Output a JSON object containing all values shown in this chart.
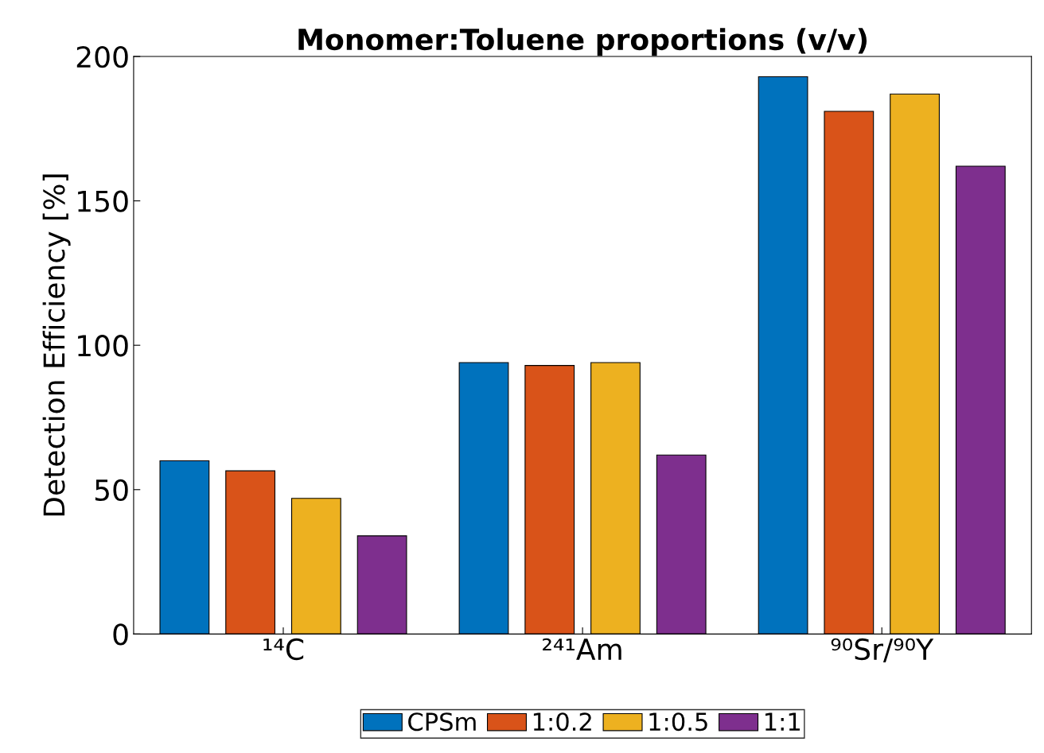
{
  "chart_data": {
    "type": "bar",
    "title": "Monomer:Toluene proportions (v/v)",
    "ylabel": "Detection Efficiency [%]",
    "categories": [
      "¹⁴C",
      "²⁴¹Am",
      "⁹⁰Sr/⁹⁰Y"
    ],
    "series": [
      {
        "name": "CPSm",
        "color": "#0072bd",
        "values": [
          60,
          94,
          193
        ]
      },
      {
        "name": "1:0.2",
        "color": "#d95319",
        "values": [
          56.5,
          93,
          181
        ]
      },
      {
        "name": "1:0.5",
        "color": "#edb120",
        "values": [
          47,
          94,
          187
        ]
      },
      {
        "name": "1:1",
        "color": "#7e2f8e",
        "values": [
          34,
          62,
          162
        ]
      }
    ],
    "ylim": [
      0,
      200
    ],
    "yticks": [
      0,
      50,
      100,
      150,
      200
    ],
    "grid": false,
    "legend": "bottom"
  }
}
